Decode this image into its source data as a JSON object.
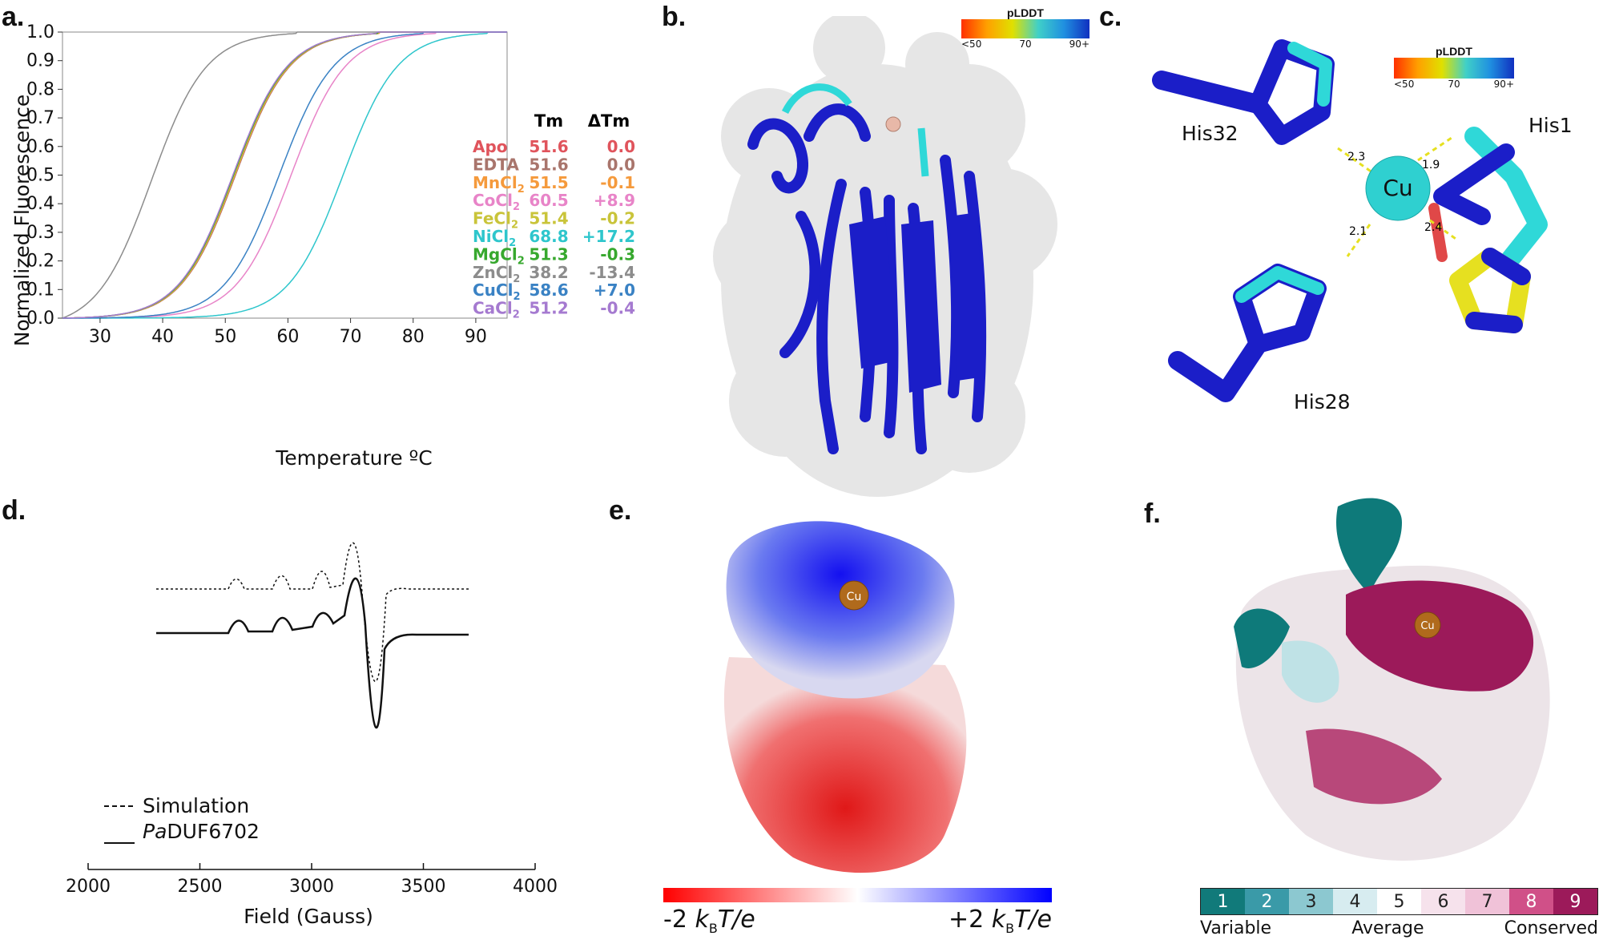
{
  "panel_labels": {
    "a": "a.",
    "b": "b.",
    "c": "c.",
    "d": "d.",
    "e": "e.",
    "f": "f."
  },
  "colors": {
    "Apo": "#e0545c",
    "EDTA": "#a9756c",
    "MnCl2": "#f59a3c",
    "CoCl2": "#e884c8",
    "FeCl2": "#c9c43a",
    "NiCl2": "#2ec6cc",
    "MgCl2": "#37a82e",
    "ZnCl2": "#8c8c8c",
    "CuCl2": "#3a82c4",
    "CaCl2": "#a57ad0",
    "protein_blue": "#1b1ec8",
    "cyan": "#2fd8d8"
  },
  "chart_data": [
    {
      "type": "line",
      "panel": "a",
      "xlabel": "Temperature ºC",
      "ylabel": "Normalized Fluorescence",
      "xlim": [
        24,
        95
      ],
      "ylim": [
        0,
        1
      ],
      "xticks": [
        "30",
        "40",
        "50",
        "60",
        "70",
        "80",
        "90"
      ],
      "yticks": [
        "0.0",
        "0.1",
        "0.2",
        "0.3",
        "0.4",
        "0.5",
        "0.6",
        "0.7",
        "0.8",
        "0.9",
        "1.0"
      ],
      "table_headers": [
        "Tm",
        "ΔTm"
      ],
      "series": [
        {
          "name": "Apo",
          "sub": "",
          "tm": "51.6",
          "dtm": "0.0",
          "tm_value": 51.6
        },
        {
          "name": "EDTA",
          "sub": "",
          "tm": "51.6",
          "dtm": "0.0",
          "tm_value": 51.6
        },
        {
          "name": "MnCl",
          "sub": "2",
          "tm": "51.5",
          "dtm": "-0.1",
          "tm_value": 51.5
        },
        {
          "name": "CoCl",
          "sub": "2",
          "tm": "60.5",
          "dtm": "+8.9",
          "tm_value": 60.5
        },
        {
          "name": "FeCl",
          "sub": "2",
          "tm": "51.4",
          "dtm": "-0.2",
          "tm_value": 51.4
        },
        {
          "name": "NiCl",
          "sub": "2",
          "tm": "68.8",
          "dtm": "+17.2",
          "tm_value": 68.8
        },
        {
          "name": "MgCl",
          "sub": "2",
          "tm": "51.3",
          "dtm": "-0.3",
          "tm_value": 51.3
        },
        {
          "name": "ZnCl",
          "sub": "2",
          "tm": "38.2",
          "dtm": "-13.4",
          "tm_value": 38.2
        },
        {
          "name": "CuCl",
          "sub": "2",
          "tm": "58.6",
          "dtm": "+7.0",
          "tm_value": 58.6
        },
        {
          "name": "CaCl",
          "sub": "2",
          "tm": "51.2",
          "dtm": "-0.4",
          "tm_value": 51.2
        }
      ]
    },
    {
      "type": "line",
      "panel": "d",
      "xlabel": "Field (Gauss)",
      "xlim": [
        2000,
        4000
      ],
      "xticks": [
        "2000",
        "2500",
        "3000",
        "3500",
        "4000"
      ],
      "legend": [
        {
          "style": "dashed",
          "prefix": "",
          "text": "Simulation"
        },
        {
          "style": "solid",
          "prefix": "Pa",
          "text": "DUF6702"
        }
      ]
    }
  ],
  "panel_b": {
    "colorbar_title": "pLDDT",
    "ticks": [
      "<50",
      "70",
      "90+"
    ]
  },
  "panel_c": {
    "colorbar_title": "pLDDT",
    "ticks": [
      "<50",
      "70",
      "90+"
    ],
    "metal": "Cu",
    "residues": [
      "His32",
      "His1",
      "His28"
    ],
    "distances": [
      "2.3",
      "1.9",
      "2.1",
      "2.4"
    ]
  },
  "panel_e": {
    "metal": "Cu",
    "scale_left": "-2",
    "scale_right": "+2",
    "scale_unit": "kBT/e"
  },
  "panel_f": {
    "metal": "Cu",
    "scale_values": [
      "1",
      "2",
      "3",
      "4",
      "5",
      "6",
      "7",
      "8",
      "9"
    ],
    "scale_labels": [
      "Variable",
      "Average",
      "Conserved"
    ]
  }
}
